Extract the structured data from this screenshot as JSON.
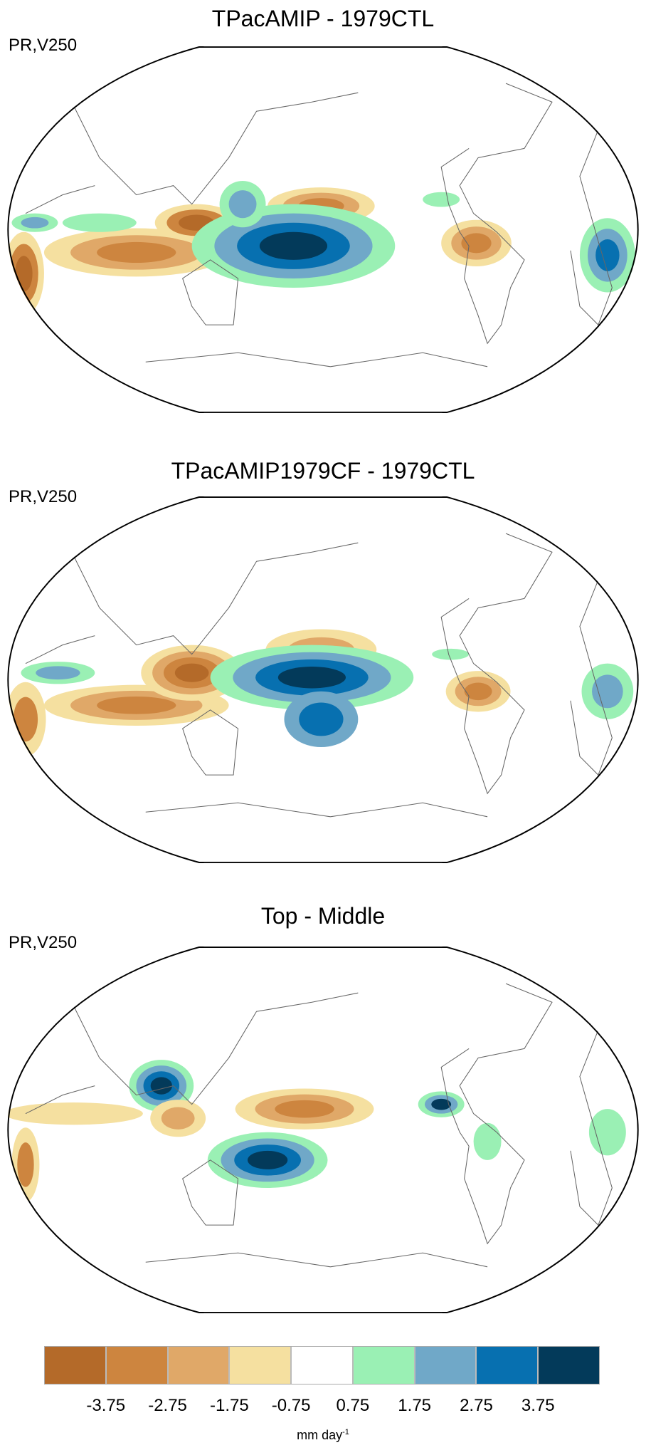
{
  "panels": [
    {
      "title": "TPacAMIP - 1979CTL",
      "subtitle": "PR,V250"
    },
    {
      "title": "TPacAMIP1979CF - 1979CTL",
      "subtitle": "PR,V250"
    },
    {
      "title": "Top - Middle",
      "subtitle": "PR,V250"
    }
  ],
  "chart_data": {
    "type": "heatmap",
    "projection": "Robinson-like global map, Pacific-centered",
    "colorbar": {
      "levels": [
        "-3.75",
        "-2.75",
        "-1.75",
        "-0.75",
        "0.75",
        "1.75",
        "2.75",
        "3.75"
      ],
      "colors": [
        "#b46a29",
        "#cd853f",
        "#e0a868",
        "#f5e0a0",
        "#ffffff",
        "#9af0b4",
        "#70a8c8",
        "#0770b0",
        "#033a5a"
      ],
      "unit": "mm day",
      "unit_exponent": "-1"
    }
  }
}
